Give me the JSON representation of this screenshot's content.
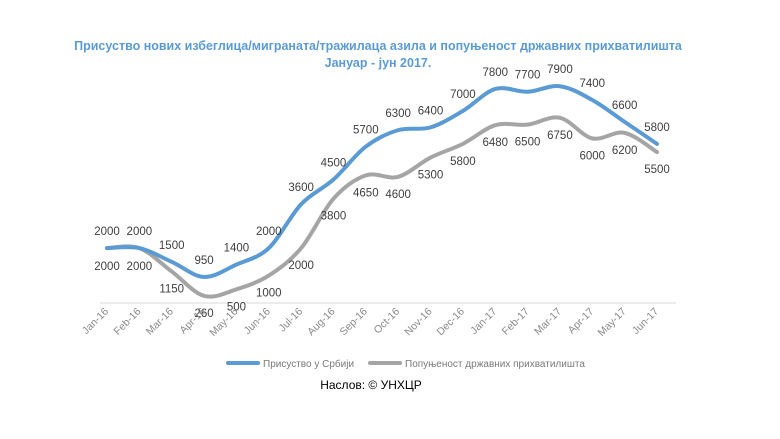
{
  "chart_data": {
    "type": "line",
    "title": "Присуство нових избеглица/миграната/тражилаца азила и попуњеност државних прихватилишта",
    "subtitle": "Јануар - јун 2017.",
    "categories": [
      "Jan-16",
      "Feb-16",
      "Mar-16",
      "Apr-16",
      "May-16",
      "Jun-16",
      "Jul-16",
      "Aug-16",
      "Sep-16",
      "Oct-16",
      "Nov-16",
      "Dec-16",
      "Jan-17",
      "Feb-17",
      "Mar-17",
      "Apr-17",
      "May-17",
      "Jun-17"
    ],
    "series": [
      {
        "name": "Присуство у Србији",
        "color": "#5b9bd5",
        "values": [
          2000,
          2000,
          1500,
          950,
          1400,
          2000,
          3600,
          4500,
          5700,
          6300,
          6400,
          7000,
          7800,
          7700,
          7900,
          7400,
          6600,
          5800
        ]
      },
      {
        "name": "Попуњеност државних прихватилишта",
        "color": "#a5a5a5",
        "values": [
          2000,
          2000,
          1150,
          260,
          500,
          1000,
          2000,
          3800,
          4650,
          4600,
          5300,
          5800,
          6480,
          6500,
          6750,
          6000,
          6200,
          5500
        ]
      }
    ],
    "ylim": [
      0,
      8200
    ],
    "grid": false,
    "legend": "bottom"
  },
  "source": "Наслов: © УНХЦР"
}
